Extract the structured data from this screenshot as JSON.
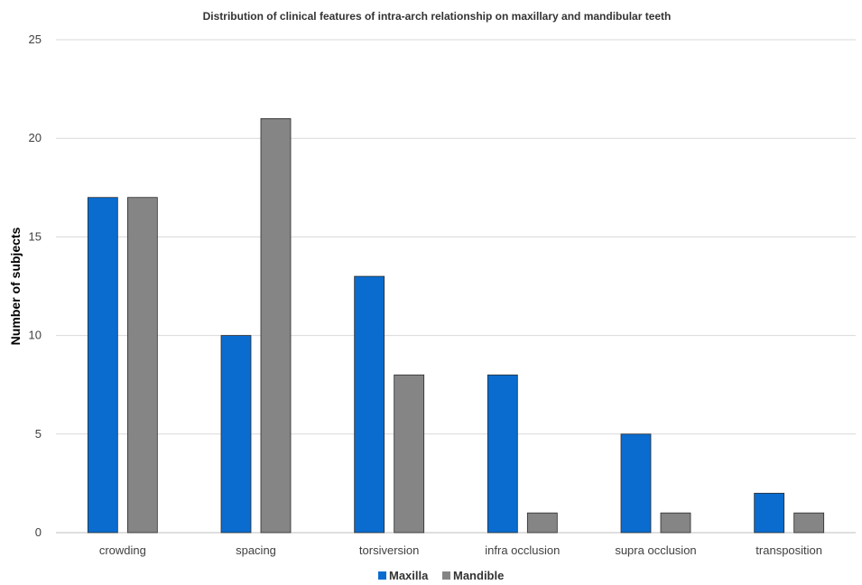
{
  "chart_data": {
    "type": "bar",
    "title": "Distribution of clinical features of intra-arch relationship on maxillary and mandibular teeth",
    "xlabel": "",
    "ylabel": "Number of subjects",
    "categories": [
      "crowding",
      "spacing",
      "torsiversion",
      "infra occlusion",
      "supra occlusion",
      "transposition"
    ],
    "series": [
      {
        "name": "Maxilla",
        "color": "#0a6ccf",
        "values": [
          17,
          10,
          13,
          8,
          5,
          2
        ]
      },
      {
        "name": "Mandible",
        "color": "#858585",
        "values": [
          17,
          21,
          8,
          1,
          1,
          1
        ]
      }
    ],
    "ylim": [
      0,
      25
    ],
    "yticks": [
      0,
      5,
      10,
      15,
      20,
      25
    ],
    "grid": true,
    "legend_position": "bottom"
  }
}
